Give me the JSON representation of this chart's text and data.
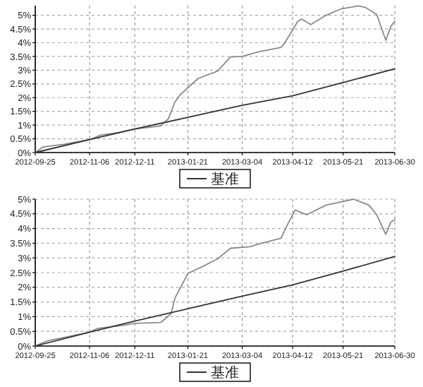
{
  "chart_data": [
    {
      "type": "line",
      "legend": "bottom",
      "grid": true,
      "line_style": "solid",
      "marker": "none",
      "ylim": [
        0,
        5.35
      ],
      "yticks": [
        {
          "value": 0,
          "label": "0%"
        },
        {
          "value": 0.5,
          "label": "0.5%"
        },
        {
          "value": 1,
          "label": "1%"
        },
        {
          "value": 1.5,
          "label": "1.5%"
        },
        {
          "value": 2,
          "label": "2%"
        },
        {
          "value": 2.5,
          "label": "2.5%"
        },
        {
          "value": 3,
          "label": "3%"
        },
        {
          "value": 3.5,
          "label": "3.5%"
        },
        {
          "value": 4,
          "label": "4%"
        },
        {
          "value": 4.5,
          "label": "4.5%"
        },
        {
          "value": 5,
          "label": "5%"
        }
      ],
      "xlim": [
        "2012-09-25",
        "2013-06-30"
      ],
      "xticks": [
        "2012-09-25",
        "2012-11-06",
        "2012-12-11",
        "2013-01-21",
        "2013-03-04",
        "2013-04-12",
        "2013-05-21",
        "2013-06-30"
      ],
      "series": [
        {
          "color": "#8a8a8a",
          "x": [
            "2012-09-25",
            "2012-10-01",
            "2012-10-17",
            "2012-11-06",
            "2012-11-15",
            "2012-11-28",
            "2012-12-11",
            "2012-12-31",
            "2013-01-06",
            "2013-01-11",
            "2013-01-15",
            "2013-01-21",
            "2013-01-29",
            "2013-02-13",
            "2013-02-23",
            "2013-03-04",
            "2013-03-16",
            "2013-04-03",
            "2013-04-06",
            "2013-04-16",
            "2013-04-19",
            "2013-04-26",
            "2013-05-08",
            "2013-05-20",
            "2013-06-02",
            "2013-06-07",
            "2013-06-16",
            "2013-06-23",
            "2013-06-27",
            "2013-06-30"
          ],
          "values": [
            0,
            0.2,
            0.3,
            0.47,
            0.64,
            0.72,
            0.86,
            0.97,
            1.24,
            1.84,
            2.1,
            2.36,
            2.7,
            2.97,
            3.48,
            3.5,
            3.66,
            3.83,
            4.0,
            4.78,
            4.86,
            4.66,
            5.0,
            5.24,
            5.34,
            5.29,
            5.03,
            4.09,
            4.6,
            4.78
          ]
        },
        {
          "name": "基准",
          "color": "#333333",
          "x": [
            "2012-09-25",
            "2012-11-06",
            "2012-12-11",
            "2013-01-21",
            "2013-03-04",
            "2013-04-12",
            "2013-05-21",
            "2013-06-30"
          ],
          "values": [
            0,
            0.47,
            0.86,
            1.28,
            1.72,
            2.07,
            2.55,
            3.05
          ]
        }
      ]
    },
    {
      "type": "line",
      "legend": "bottom",
      "grid": true,
      "line_style": "solid",
      "marker": "none",
      "ylim": [
        0,
        5
      ],
      "yticks": [
        {
          "value": 0,
          "label": "0%"
        },
        {
          "value": 0.5,
          "label": "0.5%"
        },
        {
          "value": 1,
          "label": "1%"
        },
        {
          "value": 1.5,
          "label": "1.5%"
        },
        {
          "value": 2,
          "label": "2%"
        },
        {
          "value": 2.5,
          "label": "2.5%"
        },
        {
          "value": 3,
          "label": "3%"
        },
        {
          "value": 3.5,
          "label": "3.5%"
        },
        {
          "value": 4,
          "label": "4%"
        },
        {
          "value": 4.5,
          "label": "4.5%"
        },
        {
          "value": 5,
          "label": "5%"
        }
      ],
      "xlim": [
        "2012-09-25",
        "2013-06-30"
      ],
      "xticks": [
        "2012-09-25",
        "2012-11-06",
        "2012-12-11",
        "2013-01-21",
        "2013-03-04",
        "2013-04-12",
        "2013-05-21",
        "2013-06-30"
      ],
      "series": [
        {
          "color": "#8a8a8a",
          "x": [
            "2012-09-25",
            "2012-10-04",
            "2012-11-06",
            "2012-11-12",
            "2012-12-04",
            "2012-12-11",
            "2012-12-31",
            "2013-01-08",
            "2013-01-11",
            "2013-01-19",
            "2013-01-21",
            "2013-02-02",
            "2013-02-13",
            "2013-02-23",
            "2013-03-10",
            "2013-03-19",
            "2013-04-03",
            "2013-04-08",
            "2013-04-14",
            "2013-04-23",
            "2013-05-08",
            "2013-05-21",
            "2013-05-29",
            "2013-06-10",
            "2013-06-16",
            "2013-06-23",
            "2013-06-27",
            "2013-06-30"
          ],
          "values": [
            0,
            0.17,
            0.47,
            0.6,
            0.72,
            0.77,
            0.8,
            1.1,
            1.63,
            2.3,
            2.47,
            2.72,
            2.97,
            3.33,
            3.38,
            3.5,
            3.67,
            4.13,
            4.63,
            4.47,
            4.8,
            4.92,
            5.0,
            4.8,
            4.47,
            3.8,
            4.22,
            4.3
          ]
        },
        {
          "name": "基准",
          "color": "#333333",
          "x": [
            "2012-09-25",
            "2012-11-06",
            "2012-12-11",
            "2013-01-21",
            "2013-03-04",
            "2013-04-12",
            "2013-05-21",
            "2013-06-30"
          ],
          "values": [
            0,
            0.47,
            0.85,
            1.27,
            1.7,
            2.08,
            2.55,
            3.05
          ]
        }
      ]
    }
  ]
}
